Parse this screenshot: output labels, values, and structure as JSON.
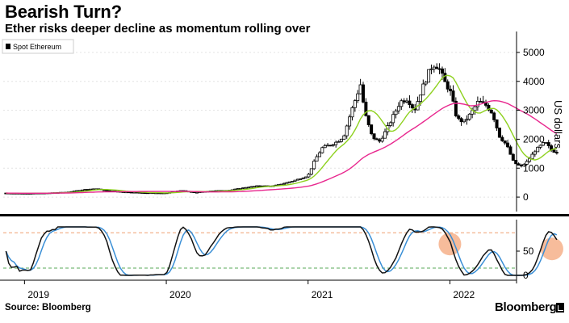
{
  "header": {
    "title": "Bearish Turn?",
    "subtitle": "Ether risks deeper decline as momentum rolling over"
  },
  "footer": {
    "source": "Source: Bloomberg",
    "brand": "Bloomberg"
  },
  "chart_data": {
    "type": "candlestick",
    "legend": {
      "label": "Spot Ethereum",
      "placement": "top-left"
    },
    "ylabel": "US dollars",
    "ylim": [
      -500,
      5500
    ],
    "yticks": [
      0,
      1000,
      2000,
      3000,
      4000,
      5000
    ],
    "xlim": [
      2018.85,
      2022.47
    ],
    "xticks": [
      {
        "label": "2019",
        "value": 2019.0
      },
      {
        "label": "2020",
        "value": 2020.0
      },
      {
        "label": "2021",
        "value": 2021.0
      },
      {
        "label": "2022",
        "value": 2022.0
      }
    ],
    "price_anchors": [
      [
        2018.85,
        140
      ],
      [
        2019.0,
        130
      ],
      [
        2019.15,
        140
      ],
      [
        2019.3,
        170
      ],
      [
        2019.42,
        260
      ],
      [
        2019.5,
        290
      ],
      [
        2019.58,
        220
      ],
      [
        2019.7,
        180
      ],
      [
        2019.85,
        150
      ],
      [
        2020.0,
        140
      ],
      [
        2020.1,
        230
      ],
      [
        2020.2,
        160
      ],
      [
        2020.3,
        210
      ],
      [
        2020.45,
        240
      ],
      [
        2020.55,
        330
      ],
      [
        2020.65,
        390
      ],
      [
        2020.75,
        380
      ],
      [
        2020.85,
        500
      ],
      [
        2020.92,
        600
      ],
      [
        2021.0,
        740
      ],
      [
        2021.05,
        1300
      ],
      [
        2021.1,
        1700
      ],
      [
        2021.15,
        1800
      ],
      [
        2021.2,
        1900
      ],
      [
        2021.25,
        2100
      ],
      [
        2021.3,
        2900
      ],
      [
        2021.37,
        3900
      ],
      [
        2021.4,
        2900
      ],
      [
        2021.45,
        2100
      ],
      [
        2021.5,
        1900
      ],
      [
        2021.55,
        2300
      ],
      [
        2021.6,
        2800
      ],
      [
        2021.65,
        3300
      ],
      [
        2021.7,
        3400
      ],
      [
        2021.75,
        3000
      ],
      [
        2021.8,
        3700
      ],
      [
        2021.85,
        4300
      ],
      [
        2021.88,
        4600
      ],
      [
        2021.92,
        4500
      ],
      [
        2021.97,
        3900
      ],
      [
        2022.0,
        3700
      ],
      [
        2022.05,
        2700
      ],
      [
        2022.1,
        2600
      ],
      [
        2022.15,
        2900
      ],
      [
        2022.2,
        3300
      ],
      [
        2022.25,
        3200
      ],
      [
        2022.3,
        2900
      ],
      [
        2022.35,
        2100
      ],
      [
        2022.4,
        1800
      ],
      [
        2022.45,
        1200
      ],
      [
        2022.5,
        1050
      ],
      [
        2022.55,
        1250
      ],
      [
        2022.6,
        1600
      ],
      [
        2022.67,
        1900
      ],
      [
        2022.72,
        1600
      ],
      [
        2022.76,
        1550
      ]
    ],
    "series": [
      {
        "name": "Short moving average",
        "color": "#8ed11f"
      },
      {
        "name": "Long moving average",
        "color": "#e8278e"
      }
    ],
    "oscillator": {
      "ylim": [
        -10,
        115
      ],
      "yticks": [
        0,
        50
      ],
      "bands": [
        15,
        88
      ],
      "series": [
        {
          "name": "Momentum %K",
          "color": "#111111"
        },
        {
          "name": "Momentum %D",
          "color": "#3a8fd6"
        }
      ],
      "highlights": [
        {
          "x": 2022.0,
          "value": 68
        },
        {
          "x": 2022.72,
          "value": 58
        }
      ]
    }
  }
}
